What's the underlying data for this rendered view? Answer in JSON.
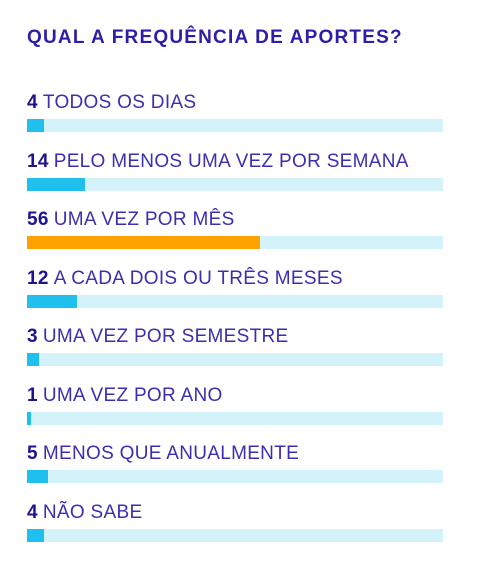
{
  "chart_data": {
    "type": "bar",
    "title": "QUAL A FREQUÊNCIA DE APORTES?",
    "orientation": "horizontal",
    "xlim": [
      0,
      100
    ],
    "categories": [
      "TODOS OS DIAS",
      "PELO MENOS UMA VEZ POR SEMANA",
      "UMA VEZ POR MÊS",
      "A CADA DOIS OU TRÊS MESES",
      "UMA VEZ POR SEMESTRE",
      "UMA VEZ POR ANO",
      "MENOS QUE ANUALMENTE",
      "NÃO SABE"
    ],
    "values": [
      4,
      14,
      56,
      12,
      3,
      1,
      5,
      4
    ],
    "highlight_index": 2
  },
  "colors": {
    "title": "#2b1ea8",
    "label": "#3a2fb0",
    "number": "#1e148f",
    "track": "#d4f2fa",
    "bar": "#1fc0ee",
    "highlight": "#ffa200"
  }
}
